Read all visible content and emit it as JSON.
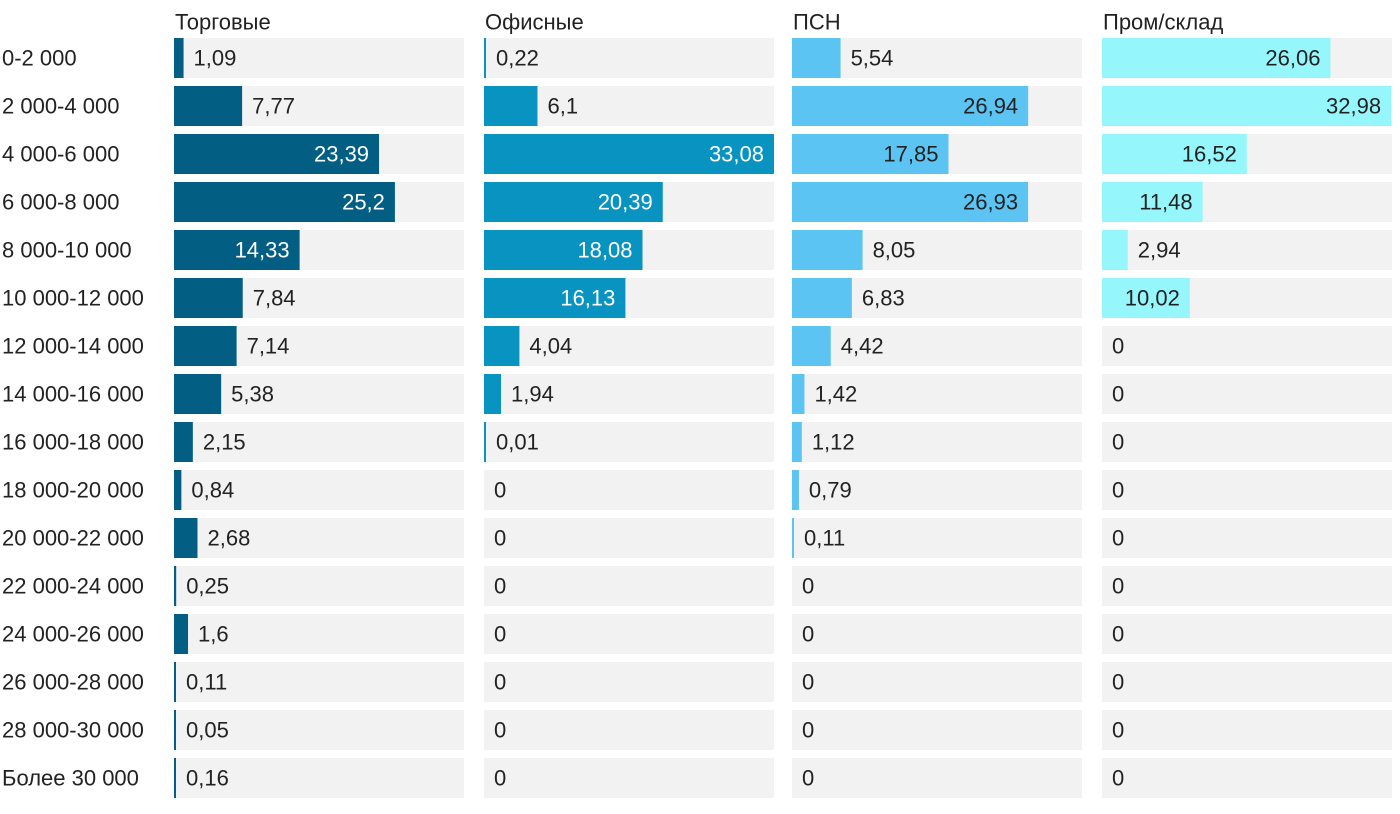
{
  "chart_data": {
    "type": "bar",
    "orientation": "horizontal",
    "layout": "small-multiples",
    "categories": [
      "0-2 000",
      "2 000-4 000",
      "4 000-6 000",
      "6 000-8 000",
      "8 000-10 000",
      "10 000-12 000",
      "12 000-14 000",
      "14 000-16 000",
      "16 000-18 000",
      "18 000-20 000",
      "20 000-22 000",
      "22 000-24 000",
      "24 000-26 000",
      "26 000-28 000",
      "28 000-30 000",
      "Более 30 000"
    ],
    "series": [
      {
        "name": "Торговые",
        "color": "#035e84",
        "values": [
          1.09,
          7.77,
          23.39,
          25.2,
          14.33,
          7.84,
          7.14,
          5.38,
          2.15,
          0.84,
          2.68,
          0.25,
          1.6,
          0.11,
          0.05,
          0.16
        ],
        "labels": [
          "1,09",
          "7,77",
          "23,39",
          "25,2",
          "14,33",
          "7,84",
          "7,14",
          "5,38",
          "2,15",
          "0,84",
          "2,68",
          "0,25",
          "1,6",
          "0,11",
          "0,05",
          "0,16"
        ]
      },
      {
        "name": "Офисные",
        "color": "#0893c0",
        "values": [
          0.22,
          6.1,
          33.08,
          20.39,
          18.08,
          16.13,
          4.04,
          1.94,
          0.01,
          0,
          0,
          0,
          0,
          0,
          0,
          0
        ],
        "labels": [
          "0,22",
          "6,1",
          "33,08",
          "20,39",
          "18,08",
          "16,13",
          "4,04",
          "1,94",
          "0,01",
          "0",
          "0",
          "0",
          "0",
          "0",
          "0",
          "0"
        ]
      },
      {
        "name": "ПСН",
        "color": "#5cc4f2",
        "values": [
          5.54,
          26.94,
          17.85,
          26.93,
          8.05,
          6.83,
          4.42,
          1.42,
          1.12,
          0.79,
          0.11,
          0,
          0,
          0,
          0,
          0
        ],
        "labels": [
          "5,54",
          "26,94",
          "17,85",
          "26,93",
          "8,05",
          "6,83",
          "4,42",
          "1,42",
          "1,12",
          "0,79",
          "0,11",
          "0",
          "0",
          "0",
          "0",
          "0"
        ]
      },
      {
        "name": "Пром/склад",
        "color": "#95f7fc",
        "values": [
          26.06,
          32.98,
          16.52,
          11.48,
          2.94,
          10.02,
          0,
          0,
          0,
          0,
          0,
          0,
          0,
          0,
          0,
          0
        ],
        "labels": [
          "26,06",
          "32,98",
          "16,52",
          "11,48",
          "2,94",
          "10,02",
          "0",
          "0",
          "0",
          "0",
          "0",
          "0",
          "0",
          "0",
          "0",
          "0"
        ]
      }
    ],
    "inside_label_colors": {
      "Торговые": "#ffffff",
      "Офисные": "#ffffff",
      "ПСН": "#222222",
      "Пром/склад": "#222222"
    },
    "track_color": "#f2f2f2",
    "text_color": "#222222"
  }
}
